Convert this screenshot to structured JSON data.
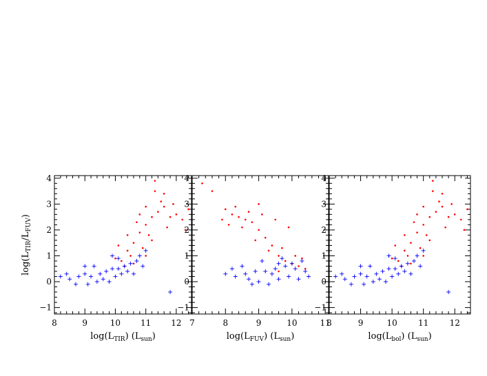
{
  "chart_data": {
    "type": "scatter",
    "panels": [
      {
        "name": "panel-ltir",
        "xlabel": {
          "base": "log(L",
          "sub": "TIR",
          "mid": ")  (L",
          "sub2": "sun",
          "end": ")"
        },
        "ylabel": {
          "base": "log(L",
          "sub": "TIR",
          "mid": "/L",
          "sub2": "FUV",
          "end": ")"
        },
        "xlim": [
          8,
          12.5
        ],
        "ylim": [
          -1.25,
          4.1
        ],
        "xticks": [
          8,
          9,
          10,
          11,
          12
        ],
        "yticks": [
          -1,
          0,
          1,
          2,
          3,
          4
        ],
        "show_ytick_labels": true,
        "series": [
          {
            "marker": "dot",
            "color": "#ff0000",
            "points": [
              [
                10.2,
                0.8
              ],
              [
                10.4,
                1.2
              ],
              [
                10.6,
                1.5
              ],
              [
                10.8,
                1.9
              ],
              [
                11.0,
                2.2
              ],
              [
                11.2,
                2.5
              ],
              [
                11.4,
                2.7
              ],
              [
                11.6,
                2.9
              ],
              [
                11.3,
                3.5
              ],
              [
                11.5,
                3.1
              ],
              [
                11.8,
                2.5
              ],
              [
                12.0,
                2.6
              ],
              [
                12.2,
                2.4
              ],
              [
                11.1,
                1.8
              ],
              [
                10.9,
                1.3
              ],
              [
                10.5,
                1.0
              ],
              [
                10.3,
                0.6
              ],
              [
                10.7,
                2.3
              ],
              [
                11.0,
                2.9
              ],
              [
                11.3,
                3.9
              ],
              [
                11.6,
                3.4
              ],
              [
                12.3,
                2.0
              ],
              [
                12.4,
                2.8
              ],
              [
                10.1,
                1.4
              ],
              [
                10.8,
                2.6
              ],
              [
                11.2,
                1.6
              ],
              [
                11.7,
                2.1
              ],
              [
                11.9,
                3.0
              ],
              [
                10.6,
                0.7
              ],
              [
                11.0,
                1.0
              ],
              [
                10.4,
                1.8
              ],
              [
                10.0,
                0.9
              ]
            ]
          },
          {
            "marker": "plus",
            "color": "#0000ff",
            "points": [
              [
                8.2,
                0.2
              ],
              [
                8.5,
                0.1
              ],
              [
                8.8,
                0.2
              ],
              [
                9.0,
                0.3
              ],
              [
                9.2,
                0.2
              ],
              [
                9.5,
                0.3
              ],
              [
                9.7,
                0.4
              ],
              [
                9.9,
                0.5
              ],
              [
                10.1,
                0.5
              ],
              [
                10.3,
                0.6
              ],
              [
                10.5,
                0.7
              ],
              [
                10.7,
                0.8
              ],
              [
                9.3,
                0.6
              ],
              [
                9.6,
                0.1
              ],
              [
                9.8,
                0.0
              ],
              [
                10.0,
                0.2
              ],
              [
                10.2,
                0.3
              ],
              [
                10.4,
                0.4
              ],
              [
                10.6,
                0.3
              ],
              [
                8.7,
                -0.1
              ],
              [
                9.1,
                -0.1
              ],
              [
                9.4,
                0.0
              ],
              [
                10.8,
                1.0
              ],
              [
                11.0,
                1.2
              ],
              [
                10.9,
                0.6
              ],
              [
                11.8,
                -0.4
              ],
              [
                9.9,
                1.0
              ],
              [
                10.1,
                0.9
              ],
              [
                8.4,
                0.3
              ],
              [
                9.0,
                0.6
              ]
            ]
          }
        ]
      },
      {
        "name": "panel-lfuv",
        "xlabel": {
          "base": "log(L",
          "sub": "FUV",
          "mid": ")  (L",
          "sub2": "sun",
          "end": ")"
        },
        "xlim": [
          7,
          11.1
        ],
        "ylim": [
          -1.25,
          4.1
        ],
        "xticks": [
          7,
          8,
          9,
          10,
          11
        ],
        "yticks": [
          -1,
          0,
          1,
          2,
          3,
          4
        ],
        "show_ytick_labels": true,
        "series": [
          {
            "marker": "dot",
            "color": "#ff0000",
            "points": [
              [
                7.3,
                3.8
              ],
              [
                7.6,
                3.5
              ],
              [
                8.0,
                2.8
              ],
              [
                8.2,
                2.6
              ],
              [
                8.4,
                2.5
              ],
              [
                8.6,
                2.4
              ],
              [
                8.8,
                2.3
              ],
              [
                9.0,
                2.0
              ],
              [
                9.2,
                1.7
              ],
              [
                9.4,
                1.4
              ],
              [
                9.6,
                1.0
              ],
              [
                9.8,
                0.8
              ],
              [
                10.0,
                0.7
              ],
              [
                10.2,
                0.6
              ],
              [
                8.3,
                2.9
              ],
              [
                8.7,
                2.7
              ],
              [
                9.1,
                2.6
              ],
              [
                9.5,
                2.4
              ],
              [
                9.9,
                2.1
              ],
              [
                8.9,
                1.6
              ],
              [
                9.3,
                1.2
              ],
              [
                9.7,
                1.3
              ],
              [
                10.1,
                1.0
              ],
              [
                10.4,
                0.5
              ],
              [
                8.5,
                2.1
              ],
              [
                9.0,
                3.0
              ],
              [
                8.1,
                2.2
              ],
              [
                9.6,
                0.4
              ],
              [
                10.3,
                0.9
              ],
              [
                7.9,
                2.4
              ]
            ]
          },
          {
            "marker": "plus",
            "color": "#0000ff",
            "points": [
              [
                8.0,
                0.3
              ],
              [
                8.3,
                0.2
              ],
              [
                8.6,
                0.3
              ],
              [
                8.9,
                0.4
              ],
              [
                9.2,
                0.4
              ],
              [
                9.5,
                0.5
              ],
              [
                9.8,
                0.6
              ],
              [
                10.1,
                0.5
              ],
              [
                10.4,
                0.4
              ],
              [
                9.0,
                0.0
              ],
              [
                9.3,
                -0.1
              ],
              [
                9.6,
                0.1
              ],
              [
                9.9,
                0.2
              ],
              [
                10.2,
                0.1
              ],
              [
                8.5,
                0.6
              ],
              [
                9.1,
                0.8
              ],
              [
                9.7,
                0.9
              ],
              [
                10.0,
                0.7
              ],
              [
                8.8,
                -0.1
              ],
              [
                10.5,
                0.2
              ],
              [
                9.4,
                0.3
              ],
              [
                9.6,
                0.7
              ],
              [
                8.2,
                0.5
              ],
              [
                10.3,
                0.8
              ],
              [
                8.7,
                0.1
              ]
            ]
          }
        ]
      },
      {
        "name": "panel-lbol",
        "xlabel": {
          "base": "log(L",
          "sub": "bol",
          "mid": ")  (L",
          "sub2": "sun",
          "end": ")"
        },
        "xlim": [
          8,
          12.5
        ],
        "ylim": [
          -1.25,
          4.1
        ],
        "xticks": [
          8,
          9,
          10,
          11,
          12
        ],
        "yticks": [
          -1,
          0,
          1,
          2,
          3,
          4
        ],
        "show_ytick_labels": true,
        "series": [
          {
            "marker": "dot",
            "color": "#ff0000",
            "points": [
              [
                10.2,
                0.8
              ],
              [
                10.4,
                1.2
              ],
              [
                10.6,
                1.5
              ],
              [
                10.8,
                1.9
              ],
              [
                11.0,
                2.2
              ],
              [
                11.2,
                2.5
              ],
              [
                11.4,
                2.7
              ],
              [
                11.6,
                2.9
              ],
              [
                11.3,
                3.5
              ],
              [
                11.5,
                3.1
              ],
              [
                11.8,
                2.5
              ],
              [
                12.0,
                2.6
              ],
              [
                12.2,
                2.4
              ],
              [
                11.1,
                1.8
              ],
              [
                10.9,
                1.3
              ],
              [
                10.5,
                1.0
              ],
              [
                10.3,
                0.6
              ],
              [
                10.7,
                2.3
              ],
              [
                11.0,
                2.9
              ],
              [
                11.3,
                3.9
              ],
              [
                11.6,
                3.4
              ],
              [
                12.3,
                2.0
              ],
              [
                12.4,
                2.8
              ],
              [
                10.1,
                1.4
              ],
              [
                10.8,
                2.6
              ],
              [
                11.2,
                1.6
              ],
              [
                11.7,
                2.1
              ],
              [
                11.9,
                3.0
              ],
              [
                10.6,
                0.7
              ],
              [
                11.0,
                1.0
              ],
              [
                10.4,
                1.8
              ],
              [
                10.0,
                0.9
              ]
            ]
          },
          {
            "marker": "plus",
            "color": "#0000ff",
            "points": [
              [
                8.2,
                0.2
              ],
              [
                8.5,
                0.1
              ],
              [
                8.8,
                0.2
              ],
              [
                9.0,
                0.3
              ],
              [
                9.2,
                0.2
              ],
              [
                9.5,
                0.3
              ],
              [
                9.7,
                0.4
              ],
              [
                9.9,
                0.5
              ],
              [
                10.1,
                0.5
              ],
              [
                10.3,
                0.6
              ],
              [
                10.5,
                0.7
              ],
              [
                10.7,
                0.8
              ],
              [
                9.3,
                0.6
              ],
              [
                9.6,
                0.1
              ],
              [
                9.8,
                0.0
              ],
              [
                10.0,
                0.2
              ],
              [
                10.2,
                0.3
              ],
              [
                10.4,
                0.4
              ],
              [
                10.6,
                0.3
              ],
              [
                8.7,
                -0.1
              ],
              [
                9.1,
                -0.1
              ],
              [
                9.4,
                0.0
              ],
              [
                10.8,
                1.0
              ],
              [
                11.0,
                1.2
              ],
              [
                10.9,
                0.6
              ],
              [
                11.8,
                -0.4
              ],
              [
                9.9,
                1.0
              ],
              [
                10.1,
                0.9
              ],
              [
                8.4,
                0.3
              ],
              [
                9.0,
                0.6
              ]
            ]
          }
        ]
      }
    ]
  }
}
